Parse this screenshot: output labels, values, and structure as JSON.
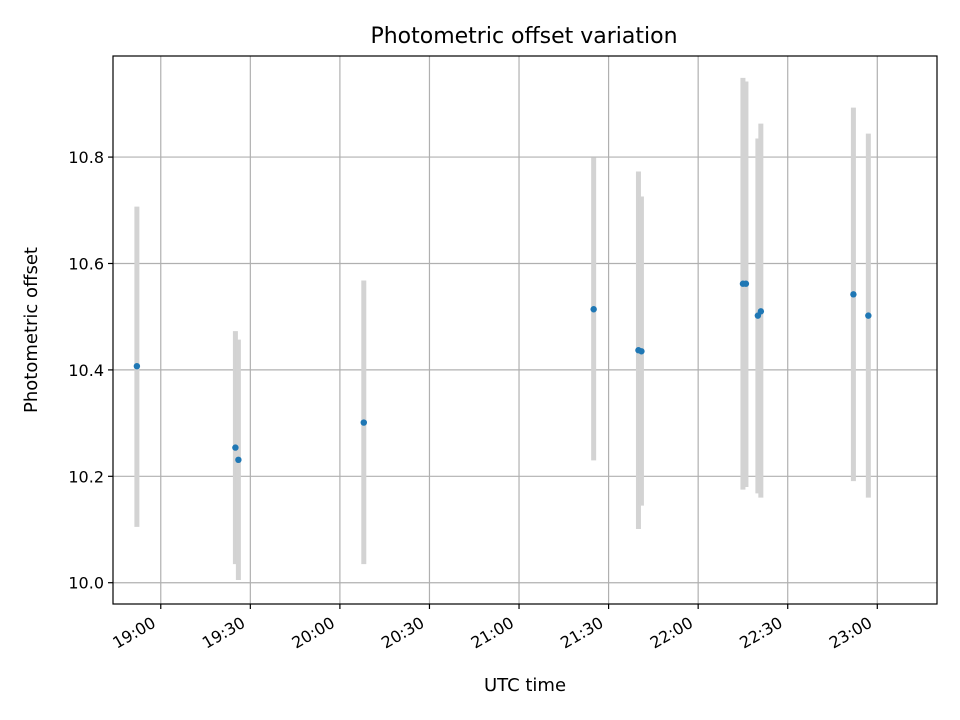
{
  "chart_data": {
    "type": "scatter",
    "title": "Photometric offset variation",
    "xlabel": "UTC time",
    "ylabel": "Photometric offset",
    "xlim": [
      "18:44",
      "23:20"
    ],
    "ylim": [
      9.96,
      10.99
    ],
    "xticks": [
      "19:00",
      "19:30",
      "20:00",
      "20:30",
      "21:00",
      "21:30",
      "22:00",
      "22:30",
      "23:00"
    ],
    "yticks": [
      "10.0",
      "10.2",
      "10.4",
      "10.6",
      "10.8"
    ],
    "grid": true,
    "point_color": "#1f77b4",
    "errorbar_color": "#d3d3d3",
    "points": [
      {
        "x": "18:52",
        "y": 10.407,
        "low": 10.105,
        "high": 10.707
      },
      {
        "x": "19:25",
        "y": 10.254,
        "low": 10.035,
        "high": 10.473
      },
      {
        "x": "19:26",
        "y": 10.231,
        "low": 10.005,
        "high": 10.457
      },
      {
        "x": "20:08",
        "y": 10.301,
        "low": 10.035,
        "high": 10.568
      },
      {
        "x": "21:25",
        "y": 10.514,
        "low": 10.23,
        "high": 10.799
      },
      {
        "x": "21:40",
        "y": 10.437,
        "low": 10.101,
        "high": 10.773
      },
      {
        "x": "21:41",
        "y": 10.435,
        "low": 10.145,
        "high": 10.726
      },
      {
        "x": "22:15",
        "y": 10.562,
        "low": 10.175,
        "high": 10.949
      },
      {
        "x": "22:16",
        "y": 10.562,
        "low": 10.18,
        "high": 10.942
      },
      {
        "x": "22:20",
        "y": 10.502,
        "low": 10.168,
        "high": 10.835
      },
      {
        "x": "22:21",
        "y": 10.51,
        "low": 10.16,
        "high": 10.863
      },
      {
        "x": "22:52",
        "y": 10.542,
        "low": 10.191,
        "high": 10.893
      },
      {
        "x": "22:57",
        "y": 10.502,
        "low": 10.16,
        "high": 10.844
      }
    ]
  }
}
